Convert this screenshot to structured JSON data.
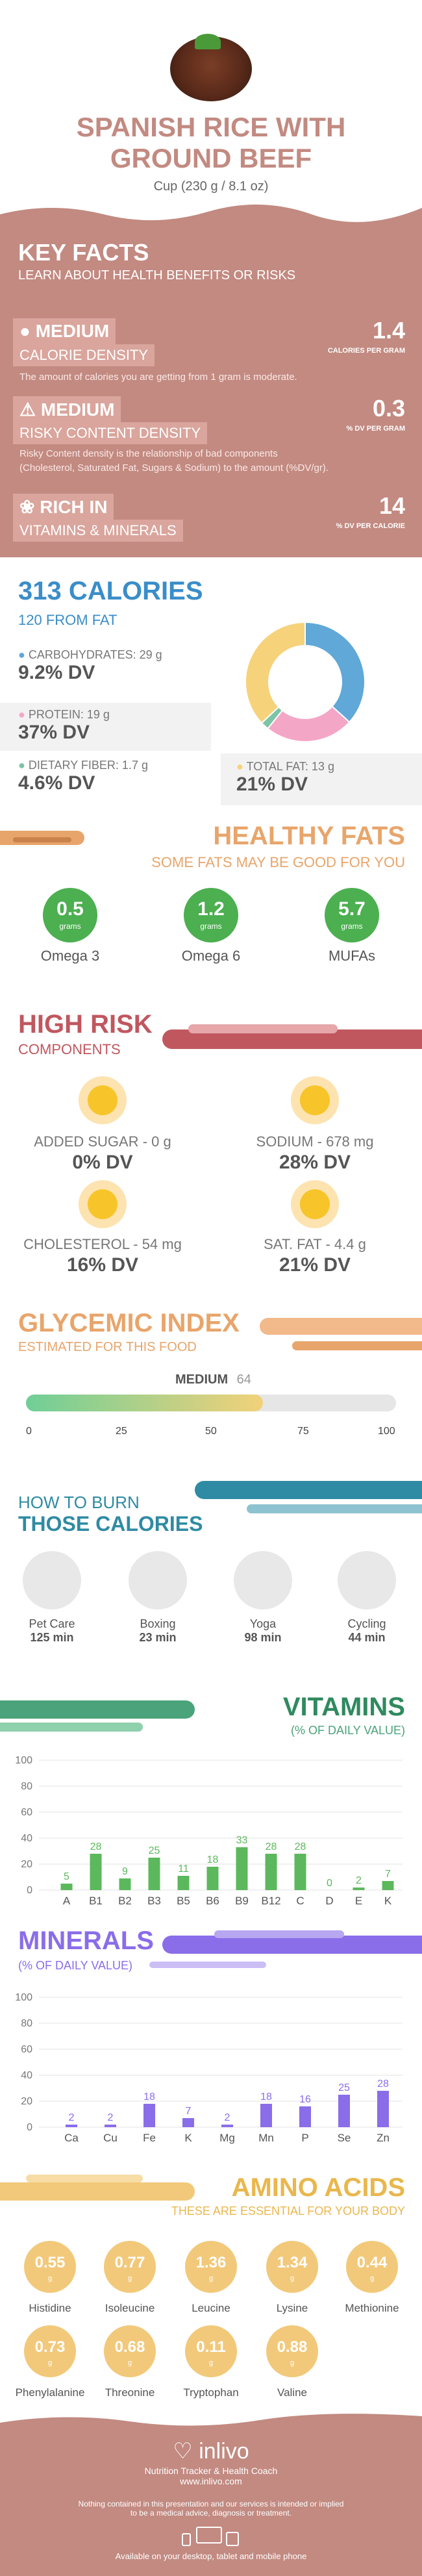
{
  "header": {
    "title_line1": "SPANISH RICE WITH",
    "title_line2": "GROUND BEEF",
    "serving": "Cup (230 g / 8.1 oz)"
  },
  "key_facts": {
    "title": "KEY FACTS",
    "subtitle": "LEARN ABOUT HEALTH BENEFITS OR RISKS",
    "calorie_density": {
      "level": "MEDIUM",
      "label": "CALORIE DENSITY",
      "value": "1.4",
      "unit": "CALORIES PER GRAM",
      "desc": "The amount of calories you are getting from 1 gram is moderate."
    },
    "risky_density": {
      "level": "MEDIUM",
      "label": "RISKY CONTENT DENSITY",
      "value": "0.3",
      "unit": "% DV PER GRAM",
      "desc1": "Risky Content density is the relationship of bad components",
      "desc2": "(Cholesterol, Saturated Fat, Sugars & Sodium) to the amount (%DV/gr)."
    },
    "vitamins_minerals": {
      "level": "RICH  IN",
      "label": "VITAMINS & MINERALS",
      "value": "14",
      "unit": "% DV PER CALORIE"
    }
  },
  "calories": {
    "title": "313 CALORIES",
    "from_fat": "120 FROM FAT",
    "carbs": {
      "label": "CARBOHYDRATES: 29 g",
      "dv": "9.2% DV"
    },
    "protein": {
      "label": "PROTEIN: 19 g",
      "dv": "37% DV"
    },
    "fiber": {
      "label": "DIETARY FIBER: 1.7 g",
      "dv": "4.6% DV"
    },
    "fat": {
      "label": "TOTAL FAT: 13 g",
      "dv": "21% DV"
    },
    "colors": {
      "carbs": "#5fa8d8",
      "protein": "#f4a6c6",
      "fiber": "#7cc4a6",
      "fat": "#f6d27a"
    }
  },
  "healthy_fats": {
    "title": "HEALTHY FATS",
    "subtitle": "SOME FATS MAY BE GOOD FOR YOU",
    "items": [
      {
        "value": "0.5",
        "unit": "grams",
        "name": "Omega 3"
      },
      {
        "value": "1.2",
        "unit": "grams",
        "name": "Omega 6"
      },
      {
        "value": "5.7",
        "unit": "grams",
        "name": "MUFAs"
      }
    ]
  },
  "high_risk": {
    "title": "HIGH RISK",
    "subtitle": "COMPONENTS",
    "items": [
      {
        "label": "ADDED SUGAR - 0 g",
        "dv": "0% DV"
      },
      {
        "label": "SODIUM - 678 mg",
        "dv": "28% DV"
      },
      {
        "label": "CHOLESTEROL - 54 mg",
        "dv": "16% DV"
      },
      {
        "label": "SAT. FAT - 4.4 g",
        "dv": "21% DV"
      }
    ]
  },
  "glycemic": {
    "title": "GLYCEMIC INDEX",
    "subtitle": "ESTIMATED FOR THIS FOOD",
    "level": "MEDIUM",
    "value": "64",
    "score": 64,
    "ticks": [
      "0",
      "25",
      "50",
      "75",
      "100"
    ]
  },
  "burn": {
    "title1": "HOW TO BURN",
    "title2": "THOSE CALORIES",
    "items": [
      {
        "name": "Pet Care",
        "time": "125 min"
      },
      {
        "name": "Boxing",
        "time": "23 min"
      },
      {
        "name": "Yoga",
        "time": "98 min"
      },
      {
        "name": "Cycling",
        "time": "44 min"
      }
    ]
  },
  "vitamins": {
    "title": "VITAMINS",
    "subtitle": "(% OF DAILY VALUE)"
  },
  "minerals": {
    "title": "MINERALS",
    "subtitle": "(% OF DAILY VALUE)"
  },
  "amino": {
    "title": "AMINO ACIDS",
    "subtitle": "THESE ARE ESSENTIAL FOR YOUR BODY",
    "items": [
      {
        "value": "0.55",
        "unit": "g",
        "name": "Histidine"
      },
      {
        "value": "0.77",
        "unit": "g",
        "name": "Isoleucine"
      },
      {
        "value": "1.36",
        "unit": "g",
        "name": "Leucine"
      },
      {
        "value": "1.34",
        "unit": "g",
        "name": "Lysine"
      },
      {
        "value": "0.44",
        "unit": "g",
        "name": "Methionine"
      },
      {
        "value": "0.73",
        "unit": "g",
        "name": "Phenylalanine"
      },
      {
        "value": "0.68",
        "unit": "g",
        "name": "Threonine"
      },
      {
        "value": "0.11",
        "unit": "g",
        "name": "Tryptophan"
      },
      {
        "value": "0.88",
        "unit": "g",
        "name": "Valine"
      }
    ]
  },
  "footer": {
    "brand": "inlivo",
    "tagline": "Nutrition Tracker & Health Coach",
    "url": "www.inlivo.com",
    "disclaimer1": "Nothing contained in this presentation and our services is intended or implied",
    "disclaimer2": "to be a medical advice, diagnosis or treatment.",
    "devices": "Available on your desktop, tablet and mobile phone"
  },
  "chart_data": [
    {
      "type": "bar",
      "categories": [
        "A",
        "B1",
        "B2",
        "B3",
        "B5",
        "B6",
        "B9",
        "B12",
        "C",
        "D",
        "E",
        "K"
      ],
      "values": [
        5,
        28,
        9,
        25,
        11,
        18,
        33,
        28,
        28,
        0,
        2,
        7
      ],
      "ylim": [
        0,
        100
      ],
      "yticks": [
        "0",
        "20",
        "40",
        "60",
        "80",
        "100"
      ],
      "color": "#5cb85c"
    },
    {
      "type": "bar",
      "categories": [
        "Ca",
        "Cu",
        "Fe",
        "K",
        "Mg",
        "Mn",
        "P",
        "Se",
        "Zn"
      ],
      "values": [
        2,
        2,
        18,
        7,
        2,
        18,
        16,
        25,
        28
      ],
      "ylim": [
        0,
        100
      ],
      "yticks": [
        "0",
        "20",
        "40",
        "60",
        "80",
        "100"
      ],
      "color": "#8a6de9"
    },
    {
      "type": "pie",
      "categories": [
        "CARBOHYDRATES",
        "PROTEIN",
        "DIETARY FIBER",
        "TOTAL FAT"
      ],
      "values": [
        116,
        76,
        7,
        117
      ]
    }
  ]
}
